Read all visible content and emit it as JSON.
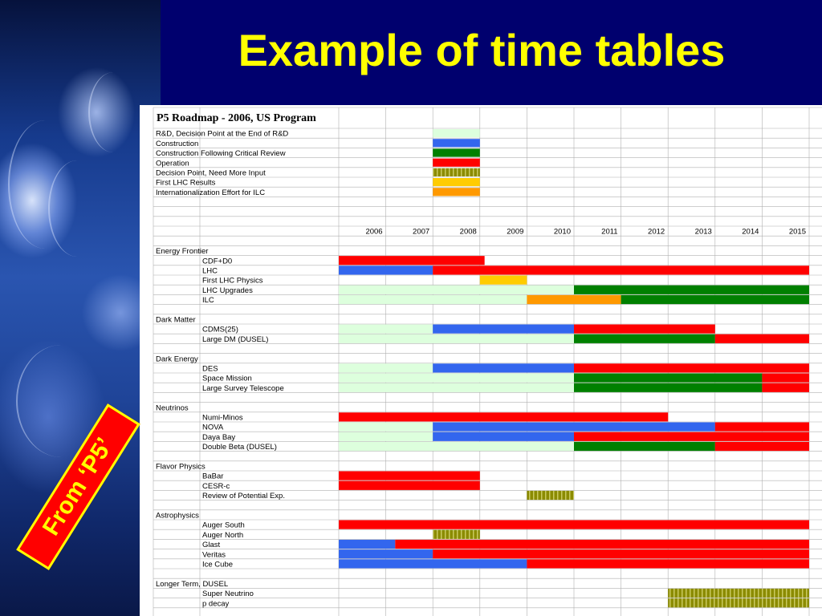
{
  "slide": {
    "title": "Example of time tables",
    "badge": "From ‘P5’"
  },
  "legend_title": "P5 Roadmap - 2006, US Program",
  "legend": [
    {
      "label": "R&D, Decision Point at the End of R&D",
      "color": "#ddffdd",
      "pattern": "solid"
    },
    {
      "label": "Construction",
      "color": "#3366ee",
      "pattern": "solid"
    },
    {
      "label": "Construction Following Critical Review",
      "color": "#008000",
      "pattern": "solid"
    },
    {
      "label": "Operation",
      "color": "#ff0000",
      "pattern": "solid"
    },
    {
      "label": "Decision Point, Need More Input",
      "color": "#8b8b00",
      "pattern": "hatch"
    },
    {
      "label": "First LHC Results",
      "color": "#ffcc00",
      "pattern": "solid"
    },
    {
      "label": "Internationalization Effort for ILC",
      "color": "#ff9900",
      "pattern": "solid"
    }
  ],
  "colors": {
    "rd": "#ddffdd",
    "construction": "#3366ee",
    "critical_review": "#008000",
    "operation": "#ff0000",
    "decision": "#8b8b00",
    "lhc_results": "#ffcc00",
    "ilc_intl": "#ff9900",
    "title_yellow": "#ffff00",
    "background_navy": "#00006e"
  },
  "chart_data": {
    "type": "gantt",
    "title": "P5 Roadmap - 2006, US Program",
    "years": [
      "2006",
      "2007",
      "2008",
      "2009",
      "2010",
      "2011",
      "2012",
      "2013",
      "2014",
      "2015"
    ],
    "x_range": [
      2006,
      2016
    ],
    "sections": [
      {
        "name": "Energy Frontier",
        "rows": [
          {
            "label": "CDF+D0",
            "bars": [
              [
                "operation",
                2006,
                2009.1
              ]
            ]
          },
          {
            "label": "LHC",
            "bars": [
              [
                "construction",
                2006,
                2008
              ],
              [
                "operation",
                2008,
                2016
              ]
            ]
          },
          {
            "label": "First LHC Physics",
            "bars": [
              [
                "lhc_results",
                2009,
                2010
              ]
            ]
          },
          {
            "label": "LHC Upgrades",
            "bars": [
              [
                "rd",
                2006,
                2011
              ],
              [
                "critical_review",
                2011,
                2016
              ]
            ]
          },
          {
            "label": "ILC",
            "bars": [
              [
                "rd",
                2006,
                2010
              ],
              [
                "ilc_intl",
                2010,
                2012
              ],
              [
                "critical_review",
                2012,
                2016
              ]
            ]
          }
        ]
      },
      {
        "name": "Dark Matter",
        "rows": [
          {
            "label": "CDMS(25)",
            "bars": [
              [
                "rd",
                2006,
                2008
              ],
              [
                "construction",
                2008,
                2011
              ],
              [
                "operation",
                2011,
                2014
              ]
            ]
          },
          {
            "label": "Large DM (DUSEL)",
            "bars": [
              [
                "rd",
                2006,
                2011
              ],
              [
                "critical_review",
                2011,
                2014
              ],
              [
                "operation",
                2014,
                2016
              ]
            ]
          }
        ]
      },
      {
        "name": "Dark Energy",
        "rows": [
          {
            "label": "DES",
            "bars": [
              [
                "rd",
                2006,
                2008
              ],
              [
                "construction",
                2008,
                2011
              ],
              [
                "operation",
                2011,
                2016
              ]
            ]
          },
          {
            "label": "Space Mission",
            "bars": [
              [
                "rd",
                2006,
                2011
              ],
              [
                "critical_review",
                2011,
                2015
              ],
              [
                "operation",
                2015,
                2016
              ]
            ]
          },
          {
            "label": "Large Survey Telescope",
            "bars": [
              [
                "rd",
                2006,
                2011
              ],
              [
                "critical_review",
                2011,
                2015
              ],
              [
                "operation",
                2015,
                2016
              ]
            ]
          }
        ]
      },
      {
        "name": "Neutrinos",
        "rows": [
          {
            "label": "Numi-Minos",
            "bars": [
              [
                "operation",
                2006,
                2013
              ]
            ]
          },
          {
            "label": "NOVA",
            "bars": [
              [
                "rd",
                2006,
                2008
              ],
              [
                "construction",
                2008,
                2014
              ],
              [
                "operation",
                2014,
                2016
              ]
            ]
          },
          {
            "label": "Daya Bay",
            "bars": [
              [
                "rd",
                2006,
                2008
              ],
              [
                "construction",
                2008,
                2011
              ],
              [
                "operation",
                2011,
                2016
              ]
            ]
          },
          {
            "label": "Double Beta (DUSEL)",
            "bars": [
              [
                "rd",
                2006,
                2011
              ],
              [
                "critical_review",
                2011,
                2014
              ],
              [
                "operation",
                2014,
                2016
              ]
            ]
          }
        ]
      },
      {
        "name": "Flavor Physics",
        "rows": [
          {
            "label": "BaBar",
            "bars": [
              [
                "operation",
                2006,
                2009
              ]
            ]
          },
          {
            "label": "CESR-c",
            "bars": [
              [
                "operation",
                2006,
                2009
              ]
            ]
          },
          {
            "label": "Review of Potential Exp.",
            "bars": [
              [
                "decision",
                2010,
                2011
              ]
            ]
          }
        ]
      },
      {
        "name": "Astrophysics",
        "rows": [
          {
            "label": "Auger South",
            "bars": [
              [
                "operation",
                2006,
                2016
              ]
            ]
          },
          {
            "label": "Auger North",
            "bars": [
              [
                "decision",
                2008,
                2009
              ]
            ]
          },
          {
            "label": "Glast",
            "bars": [
              [
                "construction",
                2006,
                2007.2
              ],
              [
                "operation",
                2007.2,
                2016
              ]
            ]
          },
          {
            "label": "Veritas",
            "bars": [
              [
                "construction",
                2006,
                2008
              ],
              [
                "operation",
                2008,
                2016
              ]
            ]
          },
          {
            "label": "Ice Cube",
            "bars": [
              [
                "construction",
                2006,
                2010
              ],
              [
                "operation",
                2010,
                2016
              ]
            ]
          }
        ]
      },
      {
        "name": "Longer Term, DUSEL",
        "rows": [
          {
            "label": "Super Neutrino",
            "bars": [
              [
                "decision",
                2013,
                2016
              ]
            ]
          },
          {
            "label": "p decay",
            "bars": [
              [
                "decision",
                2013,
                2016
              ]
            ]
          }
        ]
      }
    ]
  }
}
